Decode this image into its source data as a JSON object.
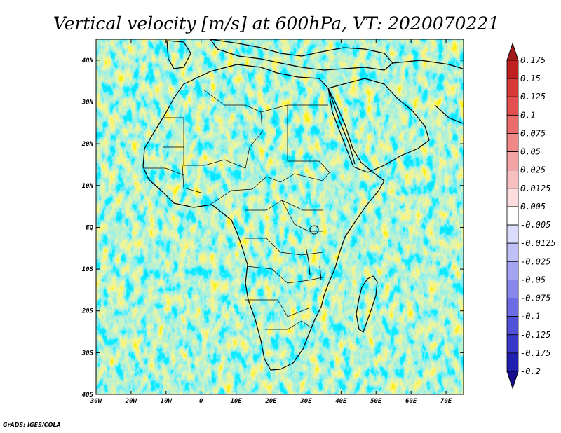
{
  "title": "Vertical velocity [m/s] at 600hPa, VT: 2020070221",
  "credit": "GrADS: IGES/COLA",
  "map": {
    "lon_range": [
      -30,
      75
    ],
    "lat_range": [
      -40,
      45
    ],
    "lon_ticks": [
      {
        "value": -30,
        "label": "30W"
      },
      {
        "value": -20,
        "label": "20W"
      },
      {
        "value": -10,
        "label": "10W"
      },
      {
        "value": 0,
        "label": "0"
      },
      {
        "value": 10,
        "label": "10E"
      },
      {
        "value": 20,
        "label": "20E"
      },
      {
        "value": 30,
        "label": "30E"
      },
      {
        "value": 40,
        "label": "40E"
      },
      {
        "value": 50,
        "label": "50E"
      },
      {
        "value": 60,
        "label": "60E"
      },
      {
        "value": 70,
        "label": "70E"
      }
    ],
    "lat_ticks": [
      {
        "value": 40,
        "label": "40N"
      },
      {
        "value": 30,
        "label": "30N"
      },
      {
        "value": 20,
        "label": "20N"
      },
      {
        "value": 10,
        "label": "10N"
      },
      {
        "value": 0,
        "label": "EQ"
      },
      {
        "value": -10,
        "label": "10S"
      },
      {
        "value": -20,
        "label": "20S"
      },
      {
        "value": -30,
        "label": "30S"
      },
      {
        "value": -40,
        "label": "40S"
      }
    ]
  },
  "colorbar": {
    "labels": [
      "0.175",
      "0.15",
      "0.125",
      "0.1",
      "0.075",
      "0.05",
      "0.025",
      "0.0125",
      "0.005",
      "-0.005",
      "-0.0125",
      "-0.025",
      "-0.05",
      "-0.075",
      "-0.1",
      "-0.125",
      "-0.175",
      "-0.2"
    ],
    "colors": [
      "#a01818",
      "#c02020",
      "#d83838",
      "#e45050",
      "#ec6c6c",
      "#f08888",
      "#f4a4a4",
      "#f8c0c0",
      "#fcdcdc",
      "#ffffff",
      "#dcdcfc",
      "#c0c0f8",
      "#a4a4f0",
      "#8888ec",
      "#6c6ce4",
      "#5050d8",
      "#3838c8",
      "#2020b0",
      "#180c90"
    ]
  }
}
